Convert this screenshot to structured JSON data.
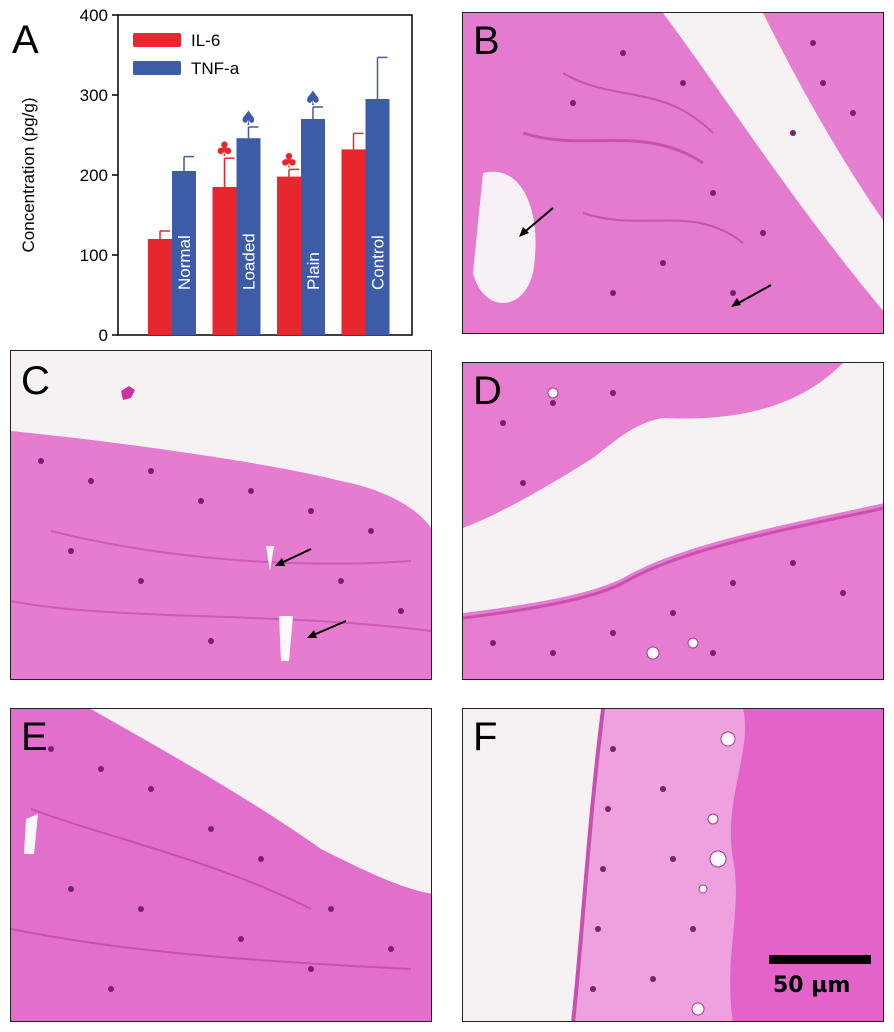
{
  "panels": {
    "A": "A",
    "B": "B",
    "C": "C",
    "D": "D",
    "E": "E",
    "F": "F"
  },
  "scale_bar": {
    "label": "50 µm"
  },
  "colors": {
    "il6": "#e8262e",
    "tnfa": "#3c5ca8",
    "tissue": "#e775cf",
    "tissue_dark": "#d24fb8",
    "background_slide": "#f6f2f4"
  },
  "chart_data": {
    "type": "bar",
    "title": "",
    "xlabel": "",
    "ylabel": "Concentration (pg/g)",
    "ylim": [
      0,
      400
    ],
    "yticks": [
      "0",
      "100",
      "200",
      "300",
      "400"
    ],
    "categories": [
      "Normal",
      "Loaded",
      "Plain",
      "Control"
    ],
    "series": [
      {
        "name": "IL-6",
        "values": [
          120,
          185,
          198,
          232
        ],
        "errors": [
          10,
          36,
          9,
          20
        ],
        "markers": [
          "",
          "♣",
          "♣",
          ""
        ]
      },
      {
        "name": "TNF-a",
        "values": [
          205,
          246,
          270,
          295
        ],
        "errors": [
          18,
          14,
          15,
          52
        ],
        "markers": [
          "",
          "♠",
          "♠",
          ""
        ]
      }
    ],
    "legend_position": "top-left",
    "grid": false
  }
}
